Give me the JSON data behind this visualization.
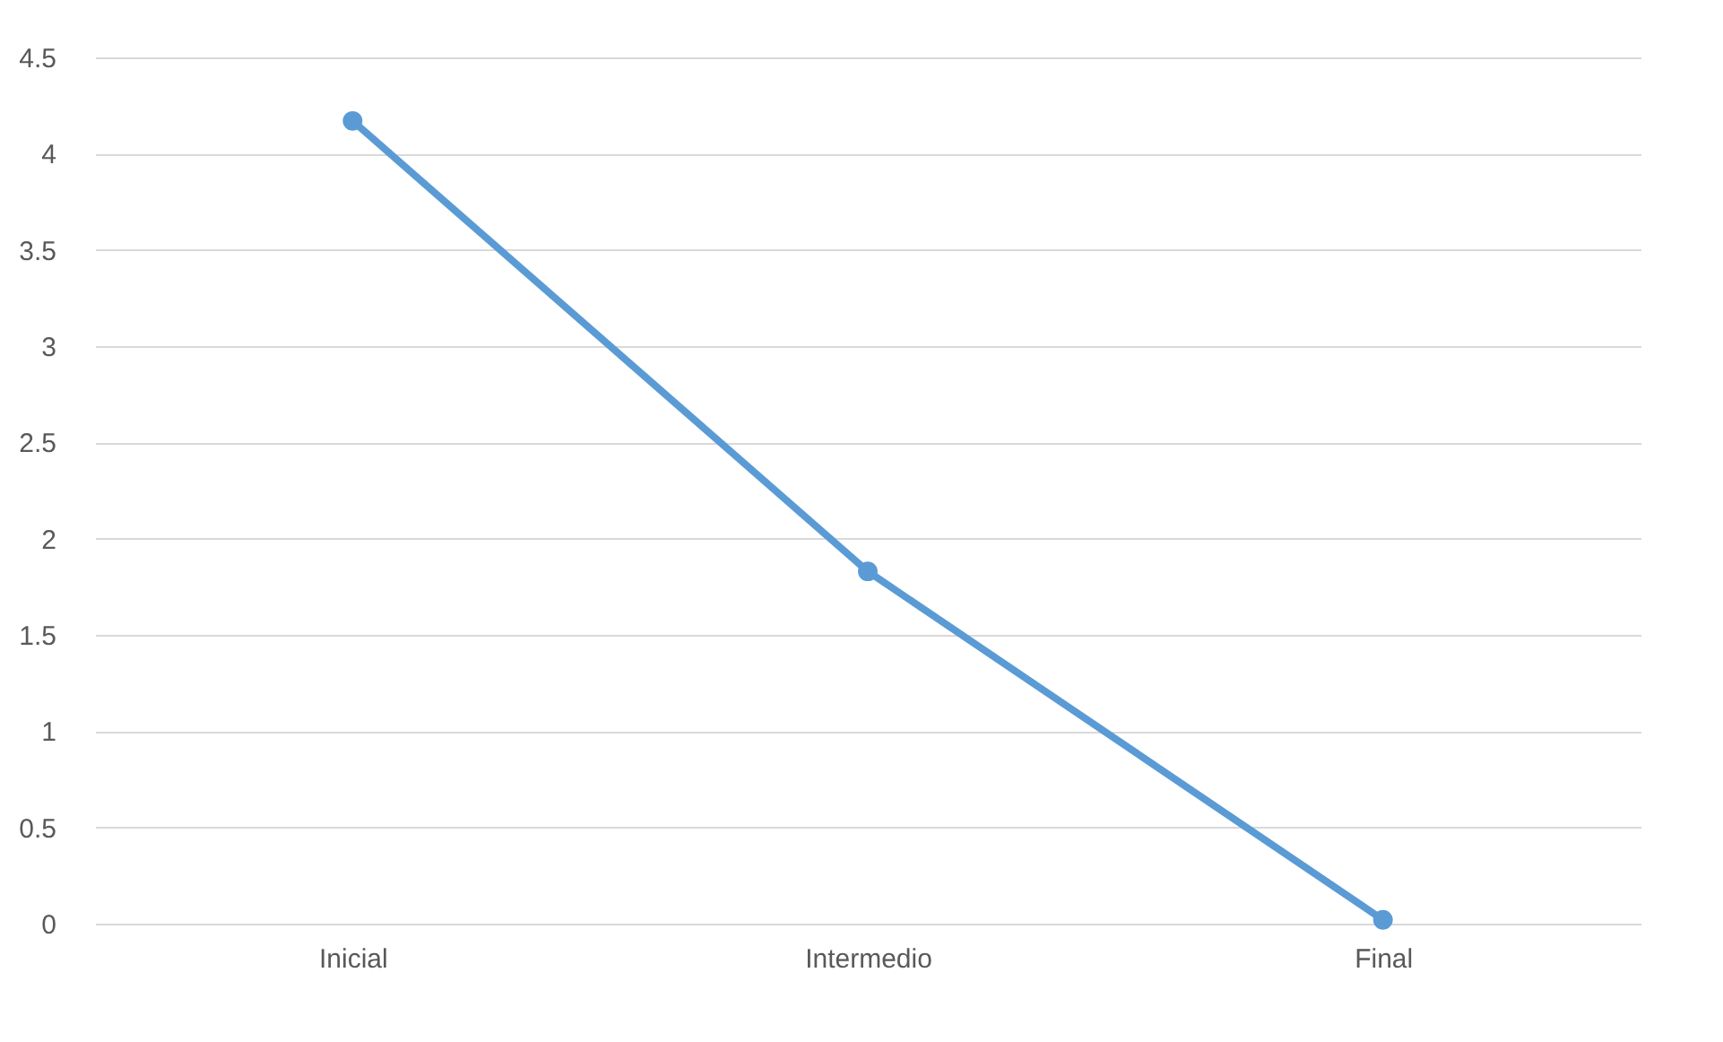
{
  "chart_data": {
    "type": "line",
    "categories": [
      "Inicial",
      "Intermedio",
      "Final"
    ],
    "series": [
      {
        "color": "#5b9bd5",
        "values": [
          4.17,
          1.83,
          0.02
        ]
      }
    ],
    "ylim": [
      0,
      4.5
    ],
    "yticks": [
      0,
      0.5,
      1,
      1.5,
      2,
      2.5,
      3,
      3.5,
      4,
      4.5
    ],
    "grid": "y",
    "marker": "circle",
    "line_style": "solid",
    "legend": false
  }
}
